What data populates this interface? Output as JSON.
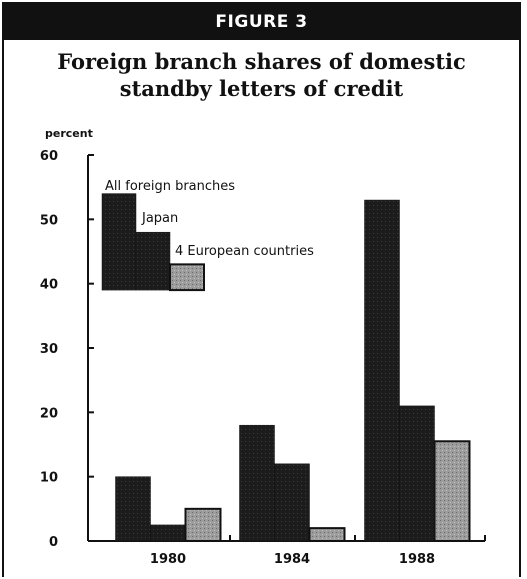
{
  "figure_label": "FIGURE 3",
  "chart_data": {
    "type": "bar",
    "title": "Foreign branch shares of domestic standby letters of credit",
    "title_lines": [
      "Foreign branch shares of domestic",
      "standby letters of credit"
    ],
    "ylabel": "percent",
    "xlabel": "",
    "ylim": [
      0,
      60
    ],
    "yticks": [
      0,
      10,
      20,
      30,
      40,
      50,
      60
    ],
    "categories": [
      "1980",
      "1984",
      "1988"
    ],
    "series": [
      {
        "name": "All foreign branches",
        "values": [
          10,
          18,
          53
        ],
        "color": "#1a1a1a"
      },
      {
        "name": "Japan",
        "values": [
          2.5,
          12,
          21
        ],
        "color": "#2b2b2b"
      },
      {
        "name": "4 European countries",
        "values": [
          5,
          2,
          15.5
        ],
        "color": "#9a9a9a"
      }
    ],
    "legend": {
      "placement": "top-left",
      "sample_values": [
        54,
        48,
        43
      ]
    },
    "grid": false
  }
}
